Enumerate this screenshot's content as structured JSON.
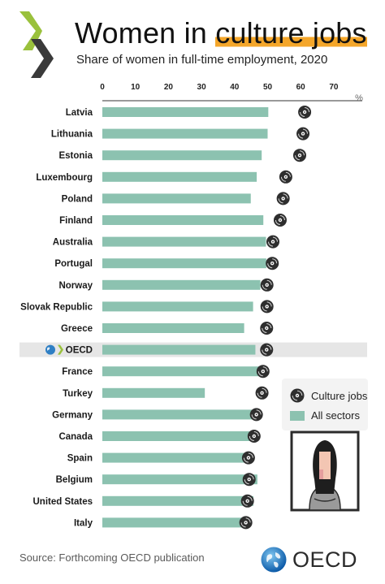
{
  "header": {
    "title_pre": "Women in ",
    "title_highlight": "culture jobs",
    "subtitle": "Share of women in full-time employment, 2020"
  },
  "source": "Source: Forthcoming OECD publication",
  "brand": {
    "name": "OECD"
  },
  "colors": {
    "bar": "#8cc2b0",
    "highlight": "#f4a62a",
    "oecd_row": "#e6e6e6",
    "disc": "#2e2e2e"
  },
  "legend": {
    "culture_label": "Culture jobs",
    "all_label": "All sectors"
  },
  "chart_data": {
    "type": "bar",
    "orientation": "horizontal",
    "title": "Women in culture jobs",
    "subtitle": "Share of women in full-time employment, 2020",
    "unit": "%",
    "xlim": [
      0,
      75
    ],
    "ticks": [
      0,
      10,
      20,
      30,
      40,
      50,
      60,
      70
    ],
    "categories": [
      "Latvia",
      "Lithuania",
      "Estonia",
      "Luxembourg",
      "Poland",
      "Finland",
      "Australia",
      "Portugal",
      "Norway",
      "Slovak Republic",
      "Greece",
      "OECD",
      "France",
      "Turkey",
      "Germany",
      "Canada",
      "Spain",
      "Belgium",
      "United States",
      "Italy"
    ],
    "highlight_category": "OECD",
    "series": [
      {
        "name": "All sectors",
        "marker": "bar",
        "values": [
          50.2,
          50.0,
          48.2,
          46.7,
          44.9,
          48.7,
          49.5,
          49.6,
          47.8,
          45.6,
          42.9,
          46.3,
          49.0,
          31.0,
          47.1,
          45.5,
          44.7,
          46.9,
          45.7,
          44.6
        ]
      },
      {
        "name": "Culture jobs",
        "marker": "disc",
        "values": [
          61.2,
          60.7,
          59.7,
          55.5,
          54.7,
          53.8,
          51.6,
          51.4,
          49.8,
          49.8,
          49.7,
          49.7,
          48.6,
          48.3,
          46.6,
          45.9,
          44.2,
          44.4,
          43.9,
          43.4
        ]
      }
    ]
  }
}
